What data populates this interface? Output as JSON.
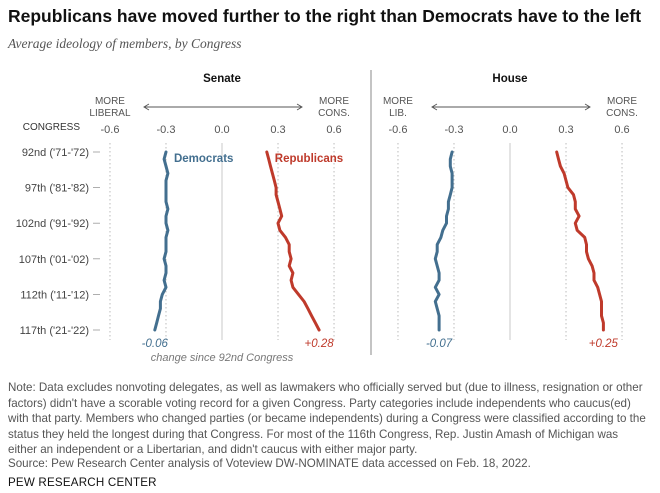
{
  "title": "Republicans have moved further to the right than Democrats have to the left",
  "subtitle": "Average ideology of members, by Congress",
  "note": "Note: Data excludes nonvoting delegates, as well as lawmakers who officially served but (due to illness, resignation or other factors) didn't have a scorable voting record for a given Congress. Party categories include independents who caucus(ed) with that party. Members who changed parties (or became independents) during a Congress were classified according to the status they held the longest during that Congress. For most of the 116th Congress, Rep. Justin Amash of Michigan was either an independent or a Libertarian, and didn't caucus with either major party.",
  "source": "Source: Pew Research Center analysis of Voteview DW-NOMINATE data accessed on Feb. 18, 2022.",
  "brand": "PEW RESEARCH CENTER",
  "colors": {
    "democrats": "#436f8f",
    "republicans": "#bf3a2b"
  },
  "chart_data": [
    {
      "type": "line",
      "title": "Senate",
      "congress_label": "CONGRESS",
      "xlim": [
        -0.6,
        0.6
      ],
      "xticks": [
        -0.6,
        -0.3,
        0.0,
        0.3,
        0.6
      ],
      "xtick_labels": [
        "-0.6",
        "-0.3",
        "0.0",
        "0.3",
        "0.6"
      ],
      "dir_left": [
        "MORE",
        "LIBERAL"
      ],
      "dir_right": [
        "MORE",
        "CONS."
      ],
      "y_categories": [
        "92nd ('71-'72)",
        "97th ('81-'82)",
        "102nd ('91-'92)",
        "107th ('01-'02)",
        "112th ('11-'12)",
        "117th ('21-'22)"
      ],
      "x_congress": [
        92,
        93,
        94,
        95,
        96,
        97,
        98,
        99,
        100,
        101,
        102,
        103,
        104,
        105,
        106,
        107,
        108,
        109,
        110,
        111,
        112,
        113,
        114,
        115,
        116,
        117
      ],
      "series": [
        {
          "name": "Democrats",
          "values": [
            -0.3,
            -0.31,
            -0.3,
            -0.29,
            -0.3,
            -0.3,
            -0.3,
            -0.3,
            -0.29,
            -0.3,
            -0.3,
            -0.29,
            -0.3,
            -0.3,
            -0.3,
            -0.31,
            -0.3,
            -0.3,
            -0.31,
            -0.3,
            -0.32,
            -0.33,
            -0.33,
            -0.34,
            -0.35,
            -0.36
          ],
          "change_label": "-0.06"
        },
        {
          "name": "Republicans",
          "values": [
            0.24,
            0.25,
            0.26,
            0.27,
            0.28,
            0.29,
            0.29,
            0.3,
            0.31,
            0.32,
            0.3,
            0.31,
            0.34,
            0.36,
            0.36,
            0.37,
            0.36,
            0.38,
            0.37,
            0.38,
            0.41,
            0.44,
            0.46,
            0.48,
            0.5,
            0.52
          ],
          "change_label": "+0.28"
        }
      ],
      "change_caption": "change since 92nd Congress"
    },
    {
      "type": "line",
      "title": "House",
      "xlim": [
        -0.6,
        0.6
      ],
      "xticks": [
        -0.6,
        -0.3,
        0.0,
        0.3,
        0.6
      ],
      "xtick_labels": [
        "-0.6",
        "-0.3",
        "0.0",
        "0.3",
        "0.6"
      ],
      "dir_left": [
        "MORE",
        "LIB."
      ],
      "dir_right": [
        "MORE",
        "CONS."
      ],
      "x_congress": [
        92,
        93,
        94,
        95,
        96,
        97,
        98,
        99,
        100,
        101,
        102,
        103,
        104,
        105,
        106,
        107,
        108,
        109,
        110,
        111,
        112,
        113,
        114,
        115,
        116,
        117
      ],
      "series": [
        {
          "name": "Democrats",
          "values": [
            -0.31,
            -0.32,
            -0.32,
            -0.31,
            -0.31,
            -0.31,
            -0.32,
            -0.33,
            -0.33,
            -0.34,
            -0.34,
            -0.36,
            -0.37,
            -0.39,
            -0.39,
            -0.4,
            -0.39,
            -0.38,
            -0.38,
            -0.4,
            -0.38,
            -0.4,
            -0.39,
            -0.38,
            -0.38,
            -0.38
          ],
          "change_label": "-0.07"
        },
        {
          "name": "Republicans",
          "values": [
            0.25,
            0.26,
            0.27,
            0.29,
            0.3,
            0.31,
            0.34,
            0.35,
            0.35,
            0.37,
            0.35,
            0.36,
            0.4,
            0.41,
            0.41,
            0.42,
            0.44,
            0.45,
            0.45,
            0.47,
            0.48,
            0.49,
            0.49,
            0.49,
            0.5,
            0.5
          ],
          "change_label": "+0.25"
        }
      ]
    }
  ]
}
